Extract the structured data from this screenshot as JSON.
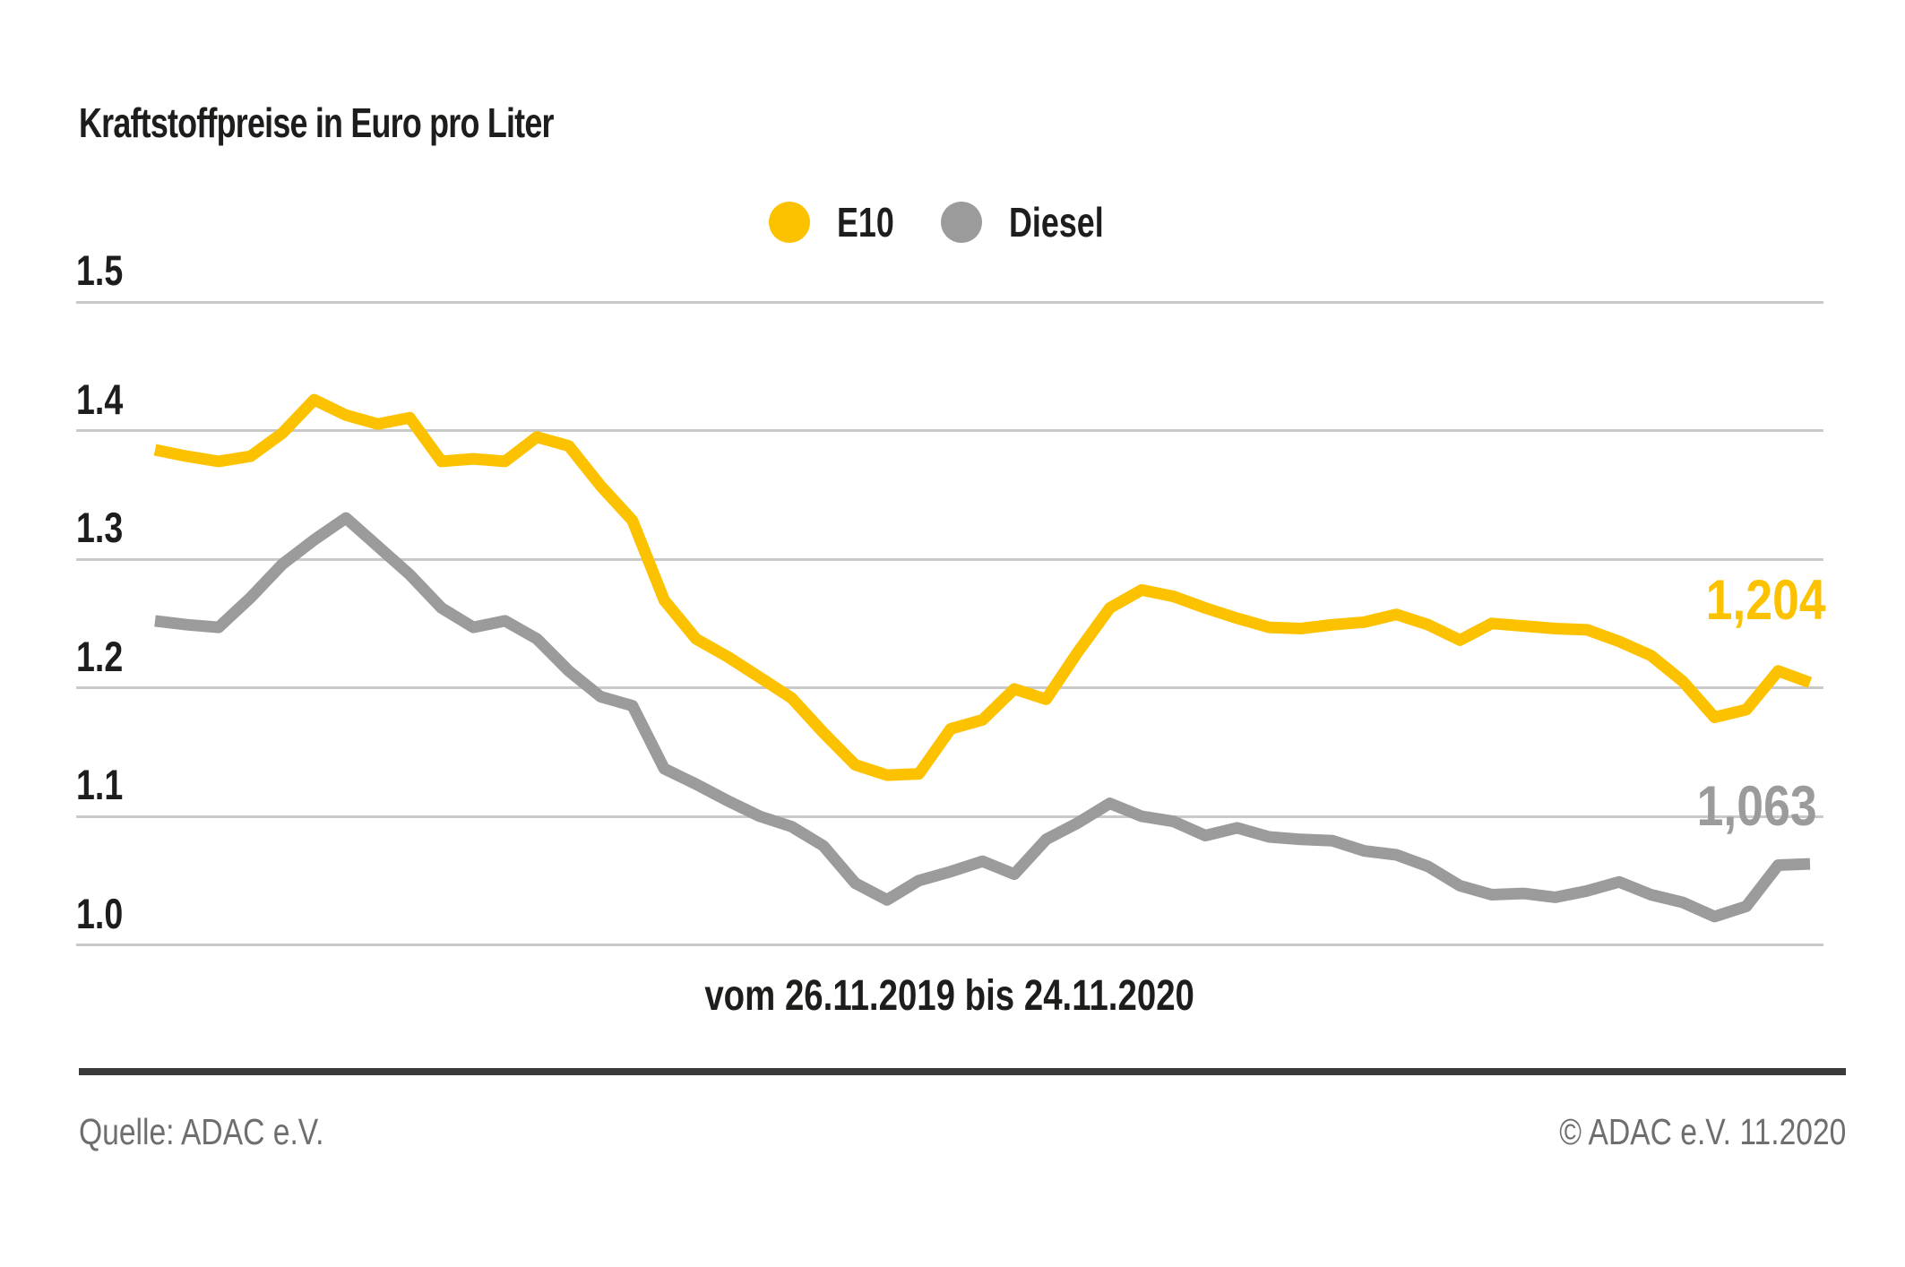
{
  "title": "Kraftstoffpreise in Euro pro Liter",
  "legend": {
    "items": [
      {
        "label": "E10",
        "color": "#fcc200"
      },
      {
        "label": "Diesel",
        "color": "#9b9b9b"
      }
    ]
  },
  "chart_data": {
    "type": "line",
    "title": "Kraftstoffpreise in Euro pro Liter",
    "xlabel": "vom 26.11.2019 bis 24.11.2020",
    "ylabel": "Euro pro Liter",
    "period_start": "26.11.2019",
    "period_end": "24.11.2020",
    "x_unit": "weekly",
    "ylim": [
      0.97,
      1.53
    ],
    "y_ticks": [
      "1.5",
      "1.4",
      "1.3",
      "1.2",
      "1.1",
      "1.0"
    ],
    "grid": true,
    "legend_position": "top-center",
    "gridline_color": "#c9c9c9",
    "series": [
      {
        "name": "E10",
        "color": "#fcc200",
        "end_label": "1,204",
        "end_value": 1.204,
        "values": [
          1.385,
          1.38,
          1.376,
          1.38,
          1.398,
          1.424,
          1.412,
          1.405,
          1.41,
          1.376,
          1.378,
          1.376,
          1.395,
          1.388,
          1.357,
          1.33,
          1.268,
          1.238,
          1.224,
          1.208,
          1.192,
          1.165,
          1.14,
          1.132,
          1.133,
          1.168,
          1.175,
          1.199,
          1.191,
          1.228,
          1.262,
          1.276,
          1.271,
          1.262,
          1.254,
          1.247,
          1.246,
          1.249,
          1.251,
          1.257,
          1.249,
          1.237,
          1.25,
          1.248,
          1.246,
          1.245,
          1.236,
          1.225,
          1.205,
          1.177,
          1.183,
          1.213,
          1.204
        ]
      },
      {
        "name": "Diesel",
        "color": "#9b9b9b",
        "end_label": "1,063",
        "end_value": 1.063,
        "values": [
          1.252,
          1.249,
          1.247,
          1.27,
          1.296,
          1.315,
          1.332,
          1.31,
          1.288,
          1.262,
          1.247,
          1.252,
          1.238,
          1.213,
          1.193,
          1.186,
          1.137,
          1.125,
          1.112,
          1.1,
          1.092,
          1.077,
          1.048,
          1.035,
          1.05,
          1.057,
          1.065,
          1.055,
          1.082,
          1.095,
          1.11,
          1.1,
          1.096,
          1.085,
          1.091,
          1.084,
          1.082,
          1.081,
          1.073,
          1.07,
          1.061,
          1.046,
          1.039,
          1.04,
          1.037,
          1.042,
          1.049,
          1.039,
          1.033,
          1.022,
          1.03,
          1.062,
          1.063
        ]
      }
    ]
  },
  "footer": {
    "source": "Quelle: ADAC e.V.",
    "copyright": "© ADAC e.V. 11.2020"
  }
}
